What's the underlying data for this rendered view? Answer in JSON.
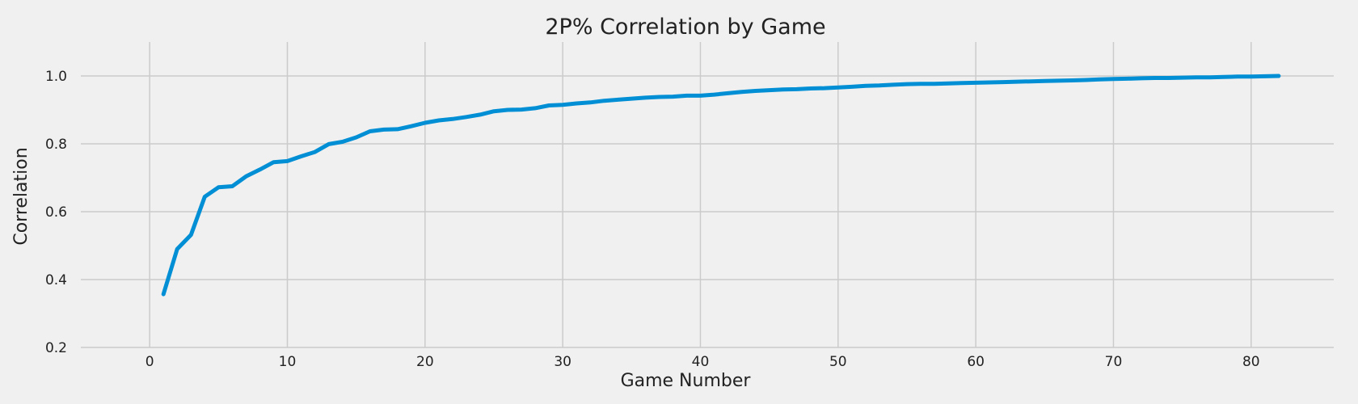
{
  "chart_data": {
    "type": "line",
    "title": "2P% Correlation by Game",
    "xlabel": "Game Number",
    "ylabel": "Correlation",
    "xlim": [
      -5,
      86
    ],
    "ylim": [
      0.2,
      1.1
    ],
    "xticks": [
      0,
      10,
      20,
      30,
      40,
      50,
      60,
      70,
      80
    ],
    "yticks": [
      0.2,
      0.4,
      0.6,
      0.8,
      1.0
    ],
    "grid": true,
    "colors": {
      "background": "#f0f0f0",
      "grid": "#cbcbcb",
      "series": "#008fd5"
    },
    "series": [
      {
        "color": "#008fd5",
        "points": [
          [
            1,
            0.357
          ],
          [
            2,
            0.49
          ],
          [
            3,
            0.532
          ],
          [
            4,
            0.644
          ],
          [
            5,
            0.672
          ],
          [
            6,
            0.675
          ],
          [
            7,
            0.704
          ],
          [
            8,
            0.724
          ],
          [
            9,
            0.746
          ],
          [
            10,
            0.749
          ],
          [
            11,
            0.763
          ],
          [
            12,
            0.776
          ],
          [
            13,
            0.799
          ],
          [
            14,
            0.806
          ],
          [
            15,
            0.819
          ],
          [
            16,
            0.837
          ],
          [
            17,
            0.842
          ],
          [
            18,
            0.843
          ],
          [
            19,
            0.852
          ],
          [
            20,
            0.862
          ],
          [
            21,
            0.869
          ],
          [
            22,
            0.873
          ],
          [
            23,
            0.879
          ],
          [
            24,
            0.886
          ],
          [
            25,
            0.896
          ],
          [
            26,
            0.9
          ],
          [
            27,
            0.901
          ],
          [
            28,
            0.905
          ],
          [
            29,
            0.913
          ],
          [
            30,
            0.915
          ],
          [
            31,
            0.919
          ],
          [
            32,
            0.922
          ],
          [
            33,
            0.927
          ],
          [
            34,
            0.93
          ],
          [
            35,
            0.933
          ],
          [
            36,
            0.936
          ],
          [
            37,
            0.938
          ],
          [
            38,
            0.939
          ],
          [
            39,
            0.942
          ],
          [
            40,
            0.942
          ],
          [
            41,
            0.945
          ],
          [
            42,
            0.949
          ],
          [
            43,
            0.953
          ],
          [
            44,
            0.956
          ],
          [
            45,
            0.958
          ],
          [
            46,
            0.96
          ],
          [
            47,
            0.961
          ],
          [
            48,
            0.963
          ],
          [
            49,
            0.964
          ],
          [
            50,
            0.966
          ],
          [
            51,
            0.968
          ],
          [
            52,
            0.971
          ],
          [
            53,
            0.972
          ],
          [
            54,
            0.974
          ],
          [
            55,
            0.976
          ],
          [
            56,
            0.977
          ],
          [
            57,
            0.977
          ],
          [
            58,
            0.978
          ],
          [
            59,
            0.979
          ],
          [
            60,
            0.98
          ],
          [
            61,
            0.981
          ],
          [
            62,
            0.982
          ],
          [
            63,
            0.983
          ],
          [
            64,
            0.984
          ],
          [
            65,
            0.985
          ],
          [
            66,
            0.986
          ],
          [
            67,
            0.987
          ],
          [
            68,
            0.988
          ],
          [
            69,
            0.99
          ],
          [
            70,
            0.991
          ],
          [
            71,
            0.992
          ],
          [
            72,
            0.993
          ],
          [
            73,
            0.994
          ],
          [
            74,
            0.994
          ],
          [
            75,
            0.995
          ],
          [
            76,
            0.996
          ],
          [
            77,
            0.996
          ],
          [
            78,
            0.997
          ],
          [
            79,
            0.998
          ],
          [
            80,
            0.998
          ],
          [
            81,
            0.999
          ],
          [
            82,
            1.0
          ]
        ]
      }
    ]
  }
}
